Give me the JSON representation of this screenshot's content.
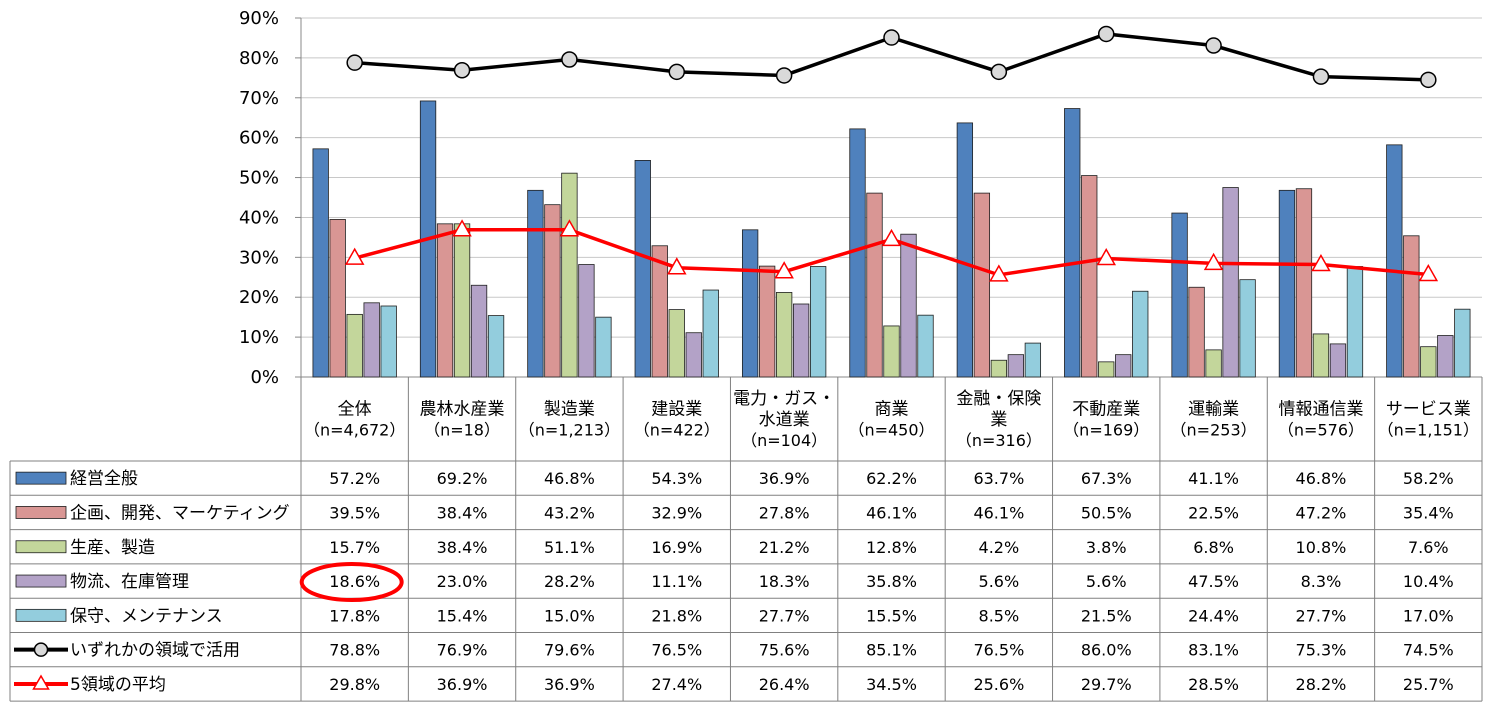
{
  "chart_data": {
    "type": "bar",
    "y_axis": {
      "min": 0,
      "max": 90,
      "step": 10,
      "tick_labels": [
        "0%",
        "10%",
        "20%",
        "30%",
        "40%",
        "50%",
        "60%",
        "70%",
        "80%",
        "90%"
      ]
    },
    "grid": true,
    "legend_placement": "left, as data-table row headers",
    "categories": [
      {
        "name_lines": [
          "全体"
        ],
        "n": "（n=4,672）"
      },
      {
        "name_lines": [
          "農林水産業"
        ],
        "n": "（n=18）"
      },
      {
        "name_lines": [
          "製造業"
        ],
        "n": "（n=1,213）"
      },
      {
        "name_lines": [
          "建設業"
        ],
        "n": "（n=422）"
      },
      {
        "name_lines": [
          "電力・ガス・",
          "水道業"
        ],
        "n": "（n=104）"
      },
      {
        "name_lines": [
          "商業"
        ],
        "n": "（n=450）"
      },
      {
        "name_lines": [
          "金融・保険",
          "業"
        ],
        "n": "（n=316）"
      },
      {
        "name_lines": [
          "不動産業"
        ],
        "n": "（n=169）"
      },
      {
        "name_lines": [
          "運輸業"
        ],
        "n": "（n=253）"
      },
      {
        "name_lines": [
          "情報通信業"
        ],
        "n": "（n=576）"
      },
      {
        "name_lines": [
          "サービス業"
        ],
        "n": "（n=1,151）"
      }
    ],
    "series": [
      {
        "name": "経営全般",
        "type": "bar",
        "color": "#4f81bd",
        "values": [
          57.2,
          69.2,
          46.8,
          54.3,
          36.9,
          62.2,
          63.7,
          67.3,
          41.1,
          46.8,
          58.2
        ],
        "labels": [
          "57.2%",
          "69.2%",
          "46.8%",
          "54.3%",
          "36.9%",
          "62.2%",
          "63.7%",
          "67.3%",
          "41.1%",
          "46.8%",
          "58.2%"
        ]
      },
      {
        "name": "企画、開発、マーケティング",
        "type": "bar",
        "color": "#d99694",
        "values": [
          39.5,
          38.4,
          43.2,
          32.9,
          27.8,
          46.1,
          46.1,
          50.5,
          22.5,
          47.2,
          35.4
        ],
        "labels": [
          "39.5%",
          "38.4%",
          "43.2%",
          "32.9%",
          "27.8%",
          "46.1%",
          "46.1%",
          "50.5%",
          "22.5%",
          "47.2%",
          "35.4%"
        ]
      },
      {
        "name": "生産、製造",
        "type": "bar",
        "color": "#c3d69b",
        "values": [
          15.7,
          38.4,
          51.1,
          16.9,
          21.2,
          12.8,
          4.2,
          3.8,
          6.8,
          10.8,
          7.6
        ],
        "labels": [
          "15.7%",
          "38.4%",
          "51.1%",
          "16.9%",
          "21.2%",
          "12.8%",
          "4.2%",
          "3.8%",
          "6.8%",
          "10.8%",
          "7.6%"
        ]
      },
      {
        "name": "物流、在庫管理",
        "type": "bar",
        "color": "#b3a2c7",
        "values": [
          18.6,
          23.0,
          28.2,
          11.1,
          18.3,
          35.8,
          5.6,
          5.6,
          47.5,
          8.3,
          10.4
        ],
        "labels": [
          "18.6%",
          "23.0%",
          "28.2%",
          "11.1%",
          "18.3%",
          "35.8%",
          "5.6%",
          "5.6%",
          "47.5%",
          "8.3%",
          "10.4%"
        ]
      },
      {
        "name": "保守、メンテナンス",
        "type": "bar",
        "color": "#93cddd",
        "values": [
          17.8,
          15.4,
          15.0,
          21.8,
          27.7,
          15.5,
          8.5,
          21.5,
          24.4,
          27.7,
          17.0
        ],
        "labels": [
          "17.8%",
          "15.4%",
          "15.0%",
          "21.8%",
          "27.7%",
          "15.5%",
          "8.5%",
          "21.5%",
          "24.4%",
          "27.7%",
          "17.0%"
        ]
      },
      {
        "name": "いずれかの領域で活用",
        "type": "line",
        "color": "#000000",
        "marker": "circle",
        "values": [
          78.8,
          76.9,
          79.6,
          76.5,
          75.6,
          85.1,
          76.5,
          86.0,
          83.1,
          75.3,
          74.5
        ],
        "labels": [
          "78.8%",
          "76.9%",
          "79.6%",
          "76.5%",
          "75.6%",
          "85.1%",
          "76.5%",
          "86.0%",
          "83.1%",
          "75.3%",
          "74.5%"
        ]
      },
      {
        "name": "5領域の平均",
        "type": "line",
        "color": "#ff0000",
        "marker": "triangle",
        "values": [
          29.8,
          36.9,
          36.9,
          27.4,
          26.4,
          34.5,
          25.6,
          29.7,
          28.5,
          28.2,
          25.7
        ],
        "labels": [
          "29.8%",
          "36.9%",
          "36.9%",
          "27.4%",
          "26.4%",
          "34.5%",
          "25.6%",
          "29.7%",
          "28.5%",
          "28.2%",
          "25.7%"
        ]
      }
    ],
    "highlight": {
      "series_index": 3,
      "category_index": 0,
      "color": "#ff0000"
    }
  }
}
